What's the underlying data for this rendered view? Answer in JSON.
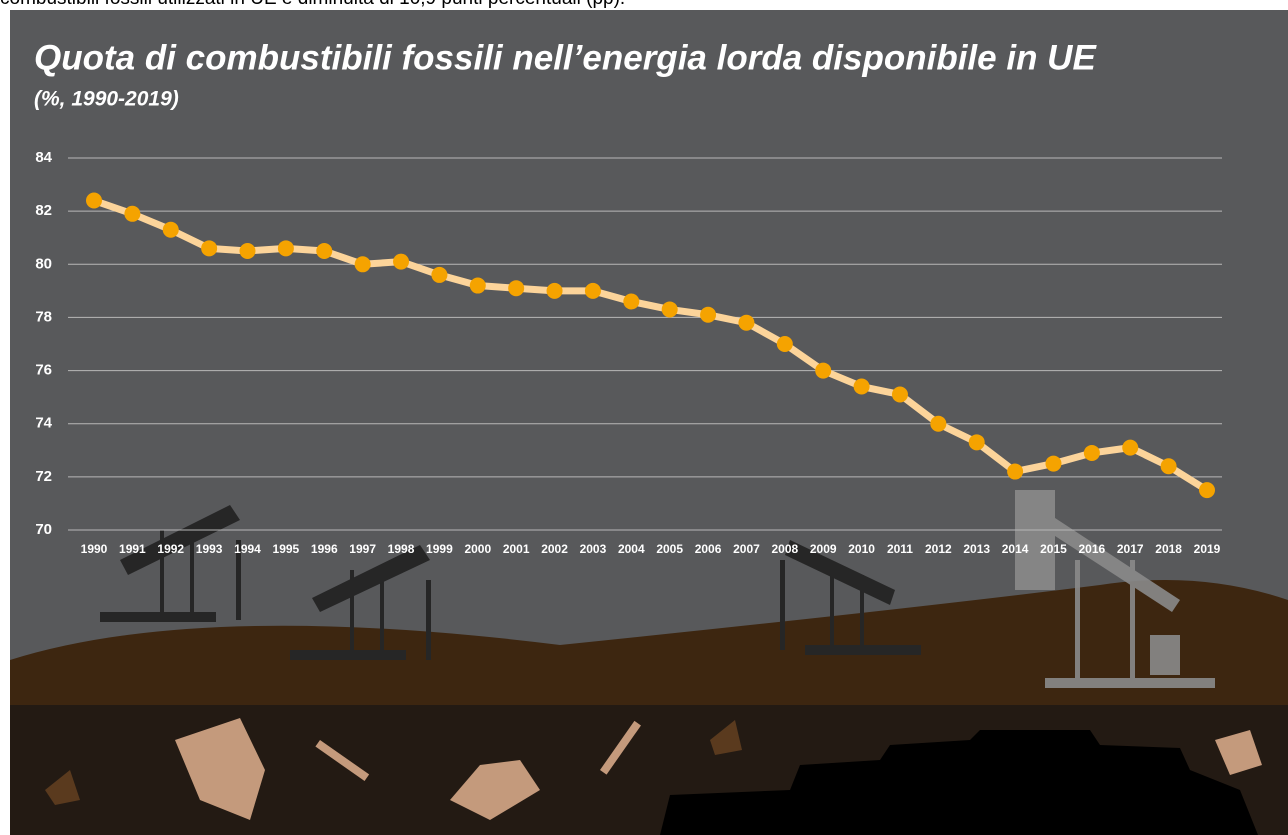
{
  "caption": "combustibili fossili utilizzati in UE è diminuita di 10,9 punti percentuali (pp).",
  "chart_data": {
    "type": "line",
    "title": "Quota di combustibili fossili nell’energia lorda disponibile in UE",
    "subtitle": "(%, 1990-2019)",
    "categories": [
      "1990",
      "1991",
      "1992",
      "1993",
      "1994",
      "1995",
      "1996",
      "1997",
      "1998",
      "1999",
      "2000",
      "2001",
      "2002",
      "2003",
      "2004",
      "2005",
      "2006",
      "2007",
      "2008",
      "2009",
      "2010",
      "2011",
      "2012",
      "2013",
      "2014",
      "2015",
      "2016",
      "2017",
      "2018",
      "2019"
    ],
    "values": [
      82.4,
      81.9,
      81.3,
      80.6,
      80.5,
      80.6,
      80.5,
      80.0,
      80.1,
      79.6,
      79.2,
      79.1,
      79.0,
      79.0,
      78.6,
      78.3,
      78.1,
      77.8,
      77.0,
      76.0,
      75.4,
      75.1,
      74.0,
      73.3,
      72.2,
      72.5,
      72.9,
      73.1,
      72.4,
      71.5
    ],
    "line_color": "#fcd49a",
    "marker_color": "#f5a300",
    "ylim": [
      70,
      84
    ],
    "yticks": [
      70,
      72,
      74,
      76,
      78,
      80,
      82,
      84
    ],
    "grid": true
  }
}
